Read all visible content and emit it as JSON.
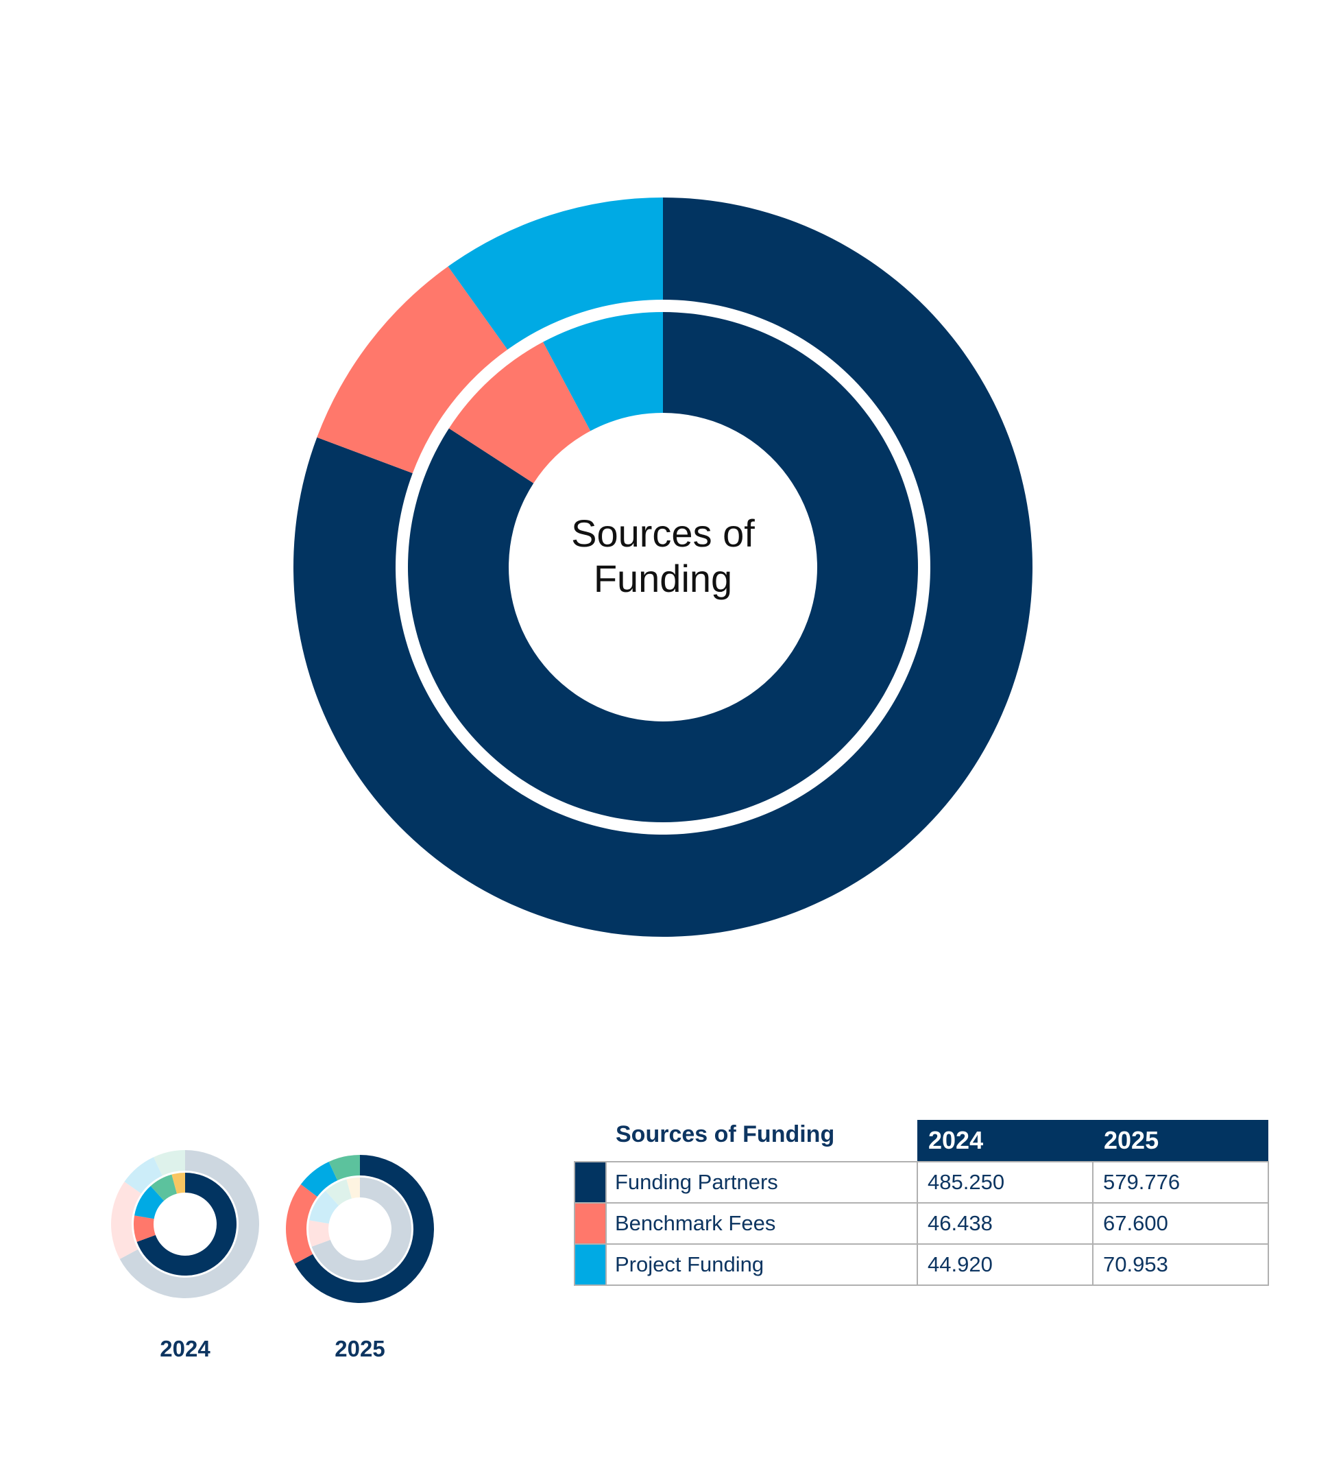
{
  "chart_data": {
    "type": "pie",
    "title": "Sources of Funding",
    "categories": [
      "Funding Partners",
      "Benchmark Fees",
      "Project Funding"
    ],
    "colors": [
      "#023461",
      "#FF786B",
      "#00AAE4"
    ],
    "series": [
      {
        "name": "2024",
        "ring": "inner",
        "values": [
          485.25,
          46.438,
          44.92
        ]
      },
      {
        "name": "2025",
        "ring": "outer",
        "values": [
          579.776,
          67.6,
          70.953
        ]
      }
    ],
    "table": {
      "title": "Sources of Funding",
      "headers": [
        "2024",
        "2025"
      ],
      "rows": [
        {
          "label": "Funding Partners",
          "color": "#023461",
          "v2024": "485.250",
          "v2025": "579.776"
        },
        {
          "label": "Benchmark Fees",
          "color": "#FF786B",
          "v2024": "46.438",
          "v2025": "67.600"
        },
        {
          "label": "Project Funding",
          "color": "#00AAE4",
          "v2024": "44.920",
          "v2025": "70.953"
        }
      ]
    },
    "thumbnails": [
      {
        "label": "2024",
        "outer": {
          "fractions": [
            0.672,
            0.175,
            0.083,
            0.07
          ],
          "colors": [
            "#CDD7E0",
            "#FFE3E1",
            "#CCEDF9",
            "#DEF2EB"
          ]
        },
        "inner": {
          "fractions": [
            0.694,
            0.083,
            0.106,
            0.075,
            0.042
          ],
          "colors": [
            "#023461",
            "#FF786B",
            "#00AAE4",
            "#5CC29D",
            "#F9C662"
          ]
        }
      },
      {
        "label": "2025",
        "outer": {
          "fractions": [
            0.672,
            0.181,
            0.078,
            0.069
          ],
          "colors": [
            "#023461",
            "#FF786B",
            "#00AAE4",
            "#5CC29D"
          ]
        },
        "inner": {
          "fractions": [
            0.694,
            0.083,
            0.106,
            0.075,
            0.042
          ],
          "colors": [
            "#CDD7E0",
            "#FFE3E1",
            "#CCEDF9",
            "#DEF2EB",
            "#FEF4E1"
          ]
        }
      }
    ]
  }
}
